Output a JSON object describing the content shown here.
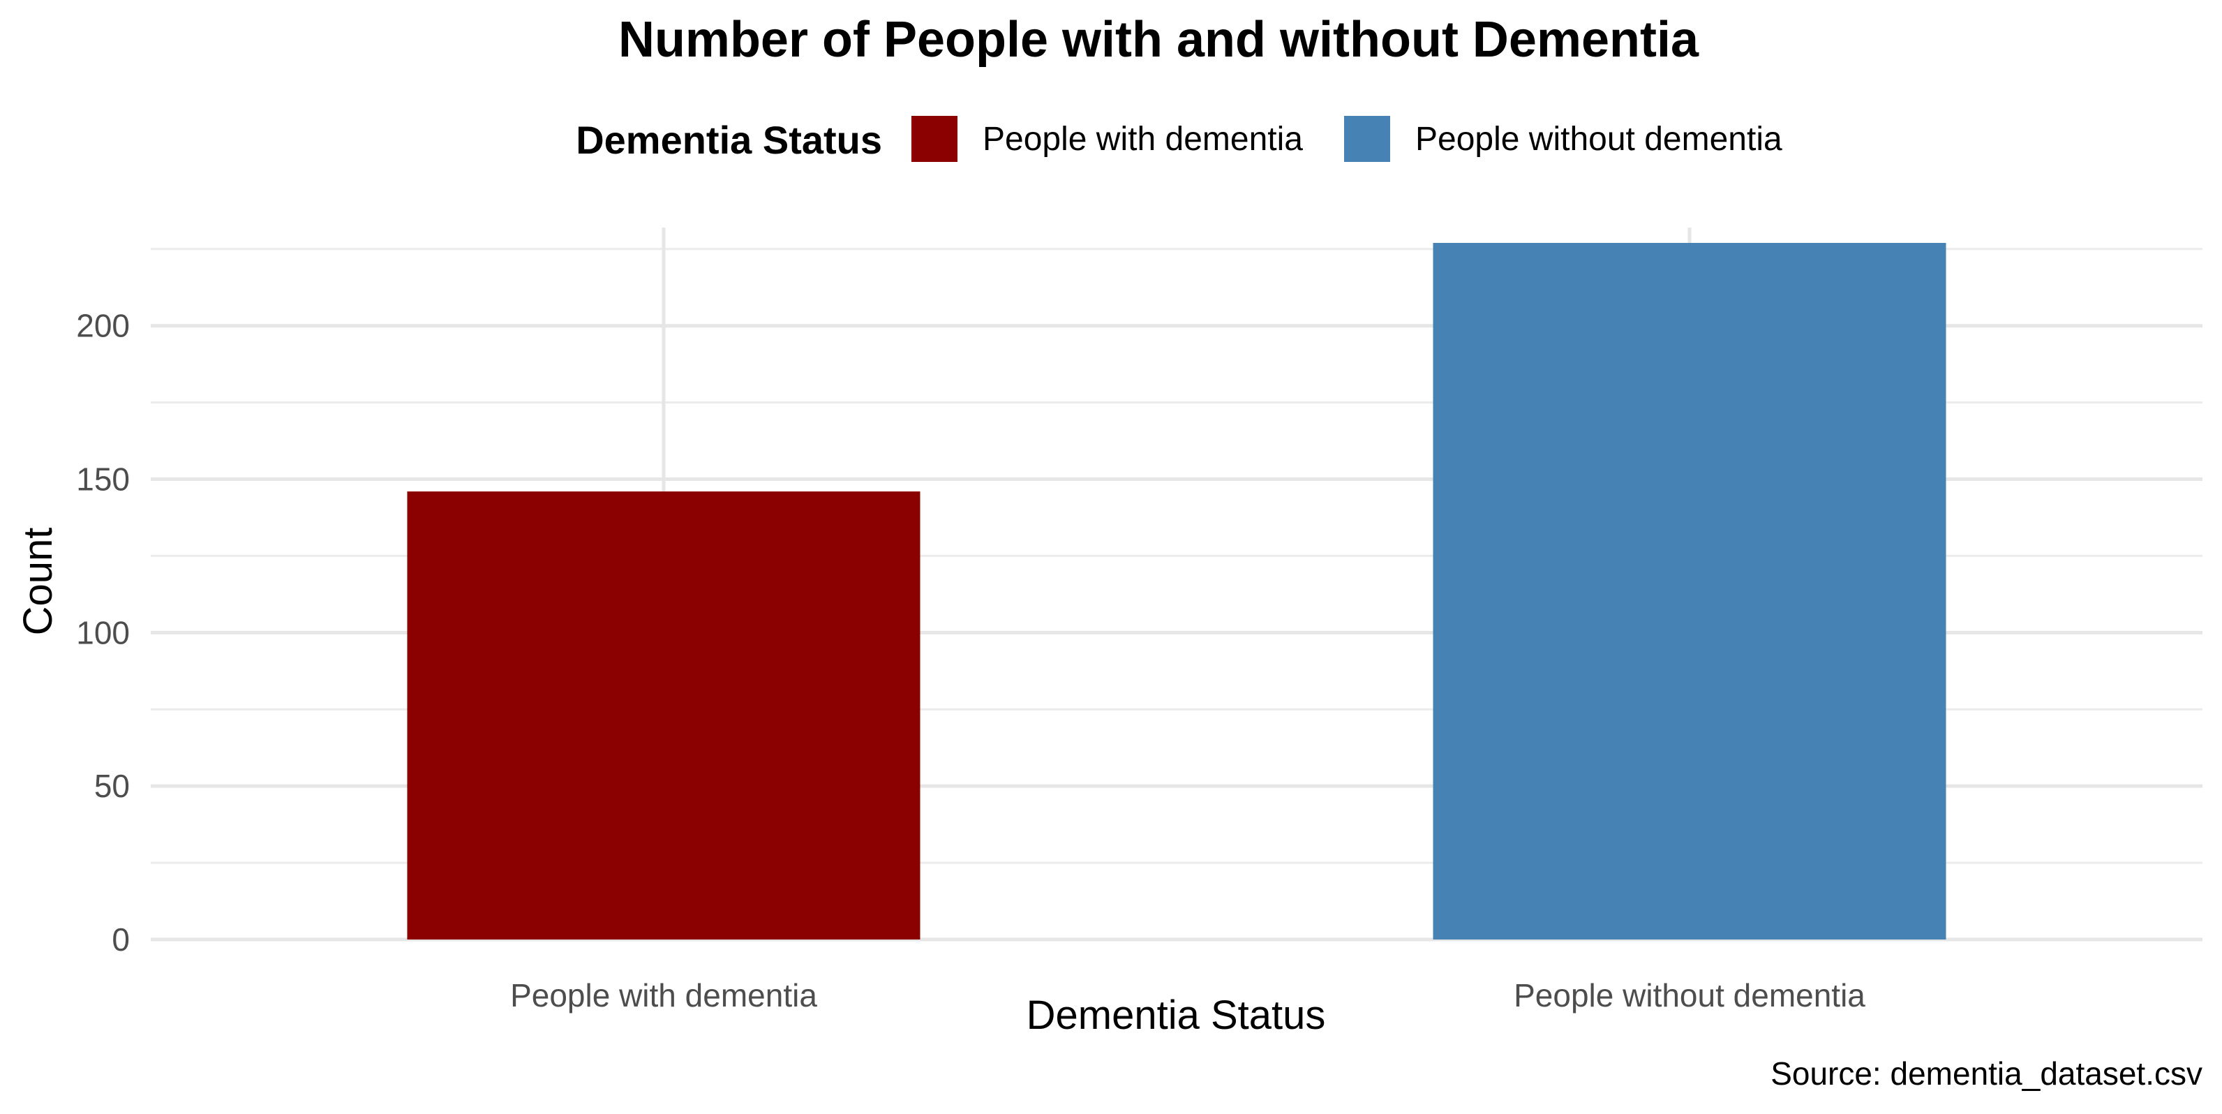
{
  "chart_data": {
    "type": "bar",
    "title": "Number of People with and without Dementia",
    "categories": [
      "People with dementia",
      "People without dementia"
    ],
    "values": [
      146,
      227
    ],
    "colors": [
      "#8b0000",
      "#4682b4"
    ],
    "xlabel": "Dementia Status",
    "ylabel": "Count",
    "ylim": [
      0,
      232
    ],
    "yticks": [
      0,
      50,
      100,
      150,
      200
    ],
    "grid": true,
    "legend": {
      "title": "Dementia Status",
      "position": "top",
      "entries": [
        "People with dementia",
        "People without dementia"
      ]
    },
    "caption": "Source: dementia_dataset.csv"
  }
}
